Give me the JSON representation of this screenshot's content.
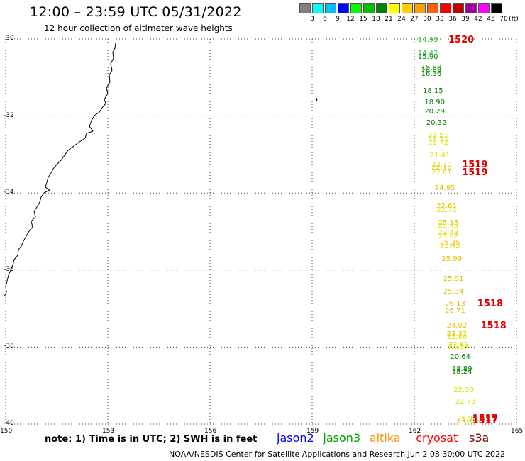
{
  "title": "12:00 – 23:59 UTC 05/31/2022",
  "subtitle": "12 hour collection of altimeter wave heights",
  "colorbar": {
    "unit": "(ft)",
    "labels": [
      "3",
      "6",
      "9",
      "12",
      "15",
      "18",
      "21",
      "24",
      "27",
      "30",
      "33",
      "36",
      "39",
      "42",
      "45",
      "70"
    ],
    "colors": [
      "#808080",
      "#00ffff",
      "#00c0ff",
      "#0000ff",
      "#00ff00",
      "#00c000",
      "#008000",
      "#ffff00",
      "#ffd000",
      "#ffa000",
      "#ff6000",
      "#ff0000",
      "#c00000",
      "#a000a0",
      "#ff00ff",
      "#000000"
    ]
  },
  "axes": {
    "lat_labels": [
      "-30",
      "-32",
      "-34",
      "-36",
      "-38",
      "-40"
    ],
    "lon_labels": [
      "150",
      "153",
      "156",
      "159",
      "162",
      "165"
    ]
  },
  "chart_data": {
    "type": "scatter",
    "x_label": "longitude",
    "y_label": "latitude",
    "xlim": [
      150,
      165
    ],
    "ylim": [
      -40,
      -30
    ],
    "grid": true,
    "points": [
      {
        "lat": -30.03,
        "lon": 162.1,
        "value": "14.93",
        "color": "#30c030"
      },
      {
        "lat": -30.38,
        "lon": 162.1,
        "value": "14.42",
        "color": "#30c030"
      },
      {
        "lat": -30.48,
        "lon": 162.1,
        "value": "15.90",
        "color": "#008000"
      },
      {
        "lat": -30.75,
        "lon": 162.2,
        "value": "15.88",
        "color": "#30c030"
      },
      {
        "lat": -30.82,
        "lon": 162.2,
        "value": "16.69",
        "color": "#008000"
      },
      {
        "lat": -30.92,
        "lon": 162.2,
        "value": "16.36",
        "color": "#008000"
      },
      {
        "lat": -31.37,
        "lon": 162.25,
        "value": "18.15",
        "color": "#008000"
      },
      {
        "lat": -31.65,
        "lon": 162.3,
        "value": "18.90",
        "color": "#008000"
      },
      {
        "lat": -31.9,
        "lon": 162.3,
        "value": "20.29",
        "color": "#008000"
      },
      {
        "lat": -32.2,
        "lon": 162.35,
        "value": "20.32",
        "color": "#008000"
      },
      {
        "lat": -32.52,
        "lon": 162.4,
        "value": "21.51",
        "color": "#e0e000"
      },
      {
        "lat": -32.62,
        "lon": 162.4,
        "value": "21.51",
        "color": "#e0e000"
      },
      {
        "lat": -32.7,
        "lon": 162.4,
        "value": "21.72",
        "color": "#e0e000"
      },
      {
        "lat": -33.03,
        "lon": 162.45,
        "value": "21.41",
        "color": "#e0e000"
      },
      {
        "lat": -33.28,
        "lon": 162.5,
        "value": "22.70",
        "color": "#e0e000"
      },
      {
        "lat": -33.36,
        "lon": 162.5,
        "value": "22.10",
        "color": "#e0c000"
      },
      {
        "lat": -33.48,
        "lon": 162.5,
        "value": "22.61",
        "color": "#e0e000"
      },
      {
        "lat": -33.88,
        "lon": 162.6,
        "value": "24.95",
        "color": "#e0c000"
      },
      {
        "lat": -34.35,
        "lon": 162.65,
        "value": "22.61",
        "color": "#e0c000"
      },
      {
        "lat": -34.45,
        "lon": 162.65,
        "value": "22.71",
        "color": "#e0e000"
      },
      {
        "lat": -34.78,
        "lon": 162.7,
        "value": "25.35",
        "color": "#e0c000"
      },
      {
        "lat": -34.86,
        "lon": 162.7,
        "value": "25.45",
        "color": "#e0e000"
      },
      {
        "lat": -35.04,
        "lon": 162.7,
        "value": "23.43",
        "color": "#e0e000"
      },
      {
        "lat": -35.13,
        "lon": 162.7,
        "value": "23.62",
        "color": "#e0e000"
      },
      {
        "lat": -35.31,
        "lon": 162.75,
        "value": "25.35",
        "color": "#e0c000"
      },
      {
        "lat": -35.38,
        "lon": 162.75,
        "value": "25.45",
        "color": "#e0e000"
      },
      {
        "lat": -35.72,
        "lon": 162.8,
        "value": "25.99",
        "color": "#e0c000"
      },
      {
        "lat": -36.25,
        "lon": 162.85,
        "value": "25.91",
        "color": "#e0c000"
      },
      {
        "lat": -36.58,
        "lon": 162.85,
        "value": "25.34",
        "color": "#e0c000"
      },
      {
        "lat": -36.88,
        "lon": 162.9,
        "value": "26.13",
        "color": "#e0c000"
      },
      {
        "lat": -37.07,
        "lon": 162.9,
        "value": "26.71",
        "color": "#e0c000"
      },
      {
        "lat": -37.45,
        "lon": 162.95,
        "value": "24.02",
        "color": "#e0c000"
      },
      {
        "lat": -37.68,
        "lon": 162.95,
        "value": "23.32",
        "color": "#e0c000"
      },
      {
        "lat": -37.75,
        "lon": 162.95,
        "value": "22.86",
        "color": "#e0e000"
      },
      {
        "lat": -37.95,
        "lon": 163.0,
        "value": "22.80",
        "color": "#e0e000"
      },
      {
        "lat": -38.02,
        "lon": 163.0,
        "value": "21.57",
        "color": "#e0e000"
      },
      {
        "lat": -38.27,
        "lon": 163.05,
        "value": "20.64",
        "color": "#008000"
      },
      {
        "lat": -38.58,
        "lon": 163.1,
        "value": "18.89",
        "color": "#008000"
      },
      {
        "lat": -38.65,
        "lon": 163.1,
        "value": "18.24",
        "color": "#008000"
      },
      {
        "lat": -39.13,
        "lon": 163.15,
        "value": "22.30",
        "color": "#e0e000"
      },
      {
        "lat": -39.42,
        "lon": 163.2,
        "value": "22.73",
        "color": "#e0e000"
      },
      {
        "lat": -39.87,
        "lon": 163.25,
        "value": "25.98",
        "color": "#e0c000"
      },
      {
        "lat": -39.93,
        "lon": 163.25,
        "value": "24.44",
        "color": "#e0e000"
      }
    ],
    "time_labels": [
      {
        "lat": -30.03,
        "lon": 163.0,
        "text": "1520"
      },
      {
        "lat": -33.28,
        "lon": 163.4,
        "text": "1519"
      },
      {
        "lat": -33.48,
        "lon": 163.4,
        "text": "1519"
      },
      {
        "lat": -36.88,
        "lon": 163.85,
        "text": "1518"
      },
      {
        "lat": -37.45,
        "lon": 163.95,
        "text": "1518"
      },
      {
        "lat": -39.87,
        "lon": 163.7,
        "text": "1517"
      },
      {
        "lat": -39.93,
        "lon": 163.7,
        "text": "1517"
      }
    ]
  },
  "note": "note: 1) Time is in UTC; 2) SWH is in feet",
  "legend": [
    {
      "name": "jason2",
      "color": "#0000ff"
    },
    {
      "name": "jason3",
      "color": "#00a000"
    },
    {
      "name": "altika",
      "color": "#ff9000"
    },
    {
      "name": "cryosat",
      "color": "#ff0000"
    },
    {
      "name": "s3a",
      "color": "#800000"
    }
  ],
  "footer": "NOAA/NESDIS Center for Satellite Applications and Research     Jun  2 08:30:00 UTC 2022"
}
